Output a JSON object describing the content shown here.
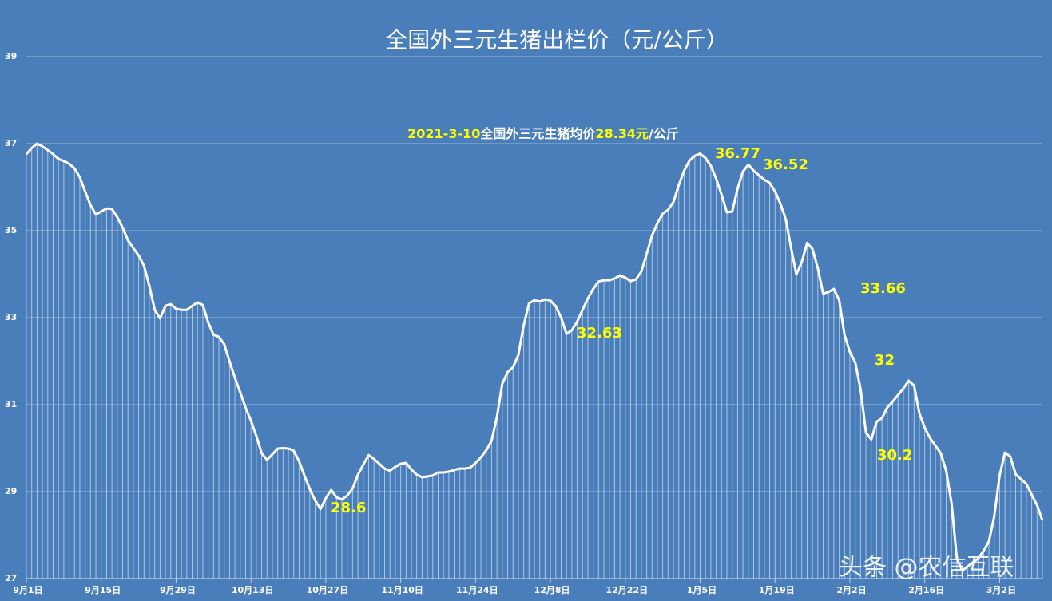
{
  "chart_data": {
    "type": "line",
    "title": "全国外三元生猪出栏价（元/公斤）",
    "subtitle": [
      "2021-3-10",
      "全国外三元生猪均价",
      "28.34元",
      "/公斤"
    ],
    "annotations": [
      "28.6",
      "32.63",
      "36.77",
      "36.52",
      "33.66",
      "32",
      "30.2"
    ],
    "watermark": "头条 @农信互联",
    "categories": [
      "9月1日",
      null,
      null,
      null,
      null,
      null,
      null,
      null,
      null,
      null,
      null,
      null,
      null,
      null,
      "9月15日",
      null,
      null,
      null,
      null,
      null,
      null,
      null,
      null,
      null,
      null,
      null,
      null,
      null,
      "9月29日",
      null,
      null,
      null,
      null,
      null,
      null,
      null,
      null,
      null,
      null,
      null,
      null,
      null,
      "10月13日",
      null,
      null,
      null,
      null,
      null,
      null,
      null,
      null,
      null,
      null,
      null,
      null,
      null,
      "10月27日",
      null,
      null,
      null,
      null,
      null,
      null,
      null,
      null,
      null,
      null,
      null,
      null,
      null,
      "11月10日",
      null,
      null,
      null,
      null,
      null,
      null,
      null,
      null,
      null,
      null,
      null,
      null,
      null,
      "11月24日",
      null,
      null,
      null,
      null,
      null,
      null,
      null,
      null,
      null,
      null,
      null,
      null,
      null,
      "12月8日",
      null,
      null,
      null,
      null,
      null,
      null,
      null,
      null,
      null,
      null,
      null,
      null,
      null,
      "12月22日",
      null,
      null,
      null,
      null,
      null,
      null,
      null,
      null,
      null,
      null,
      null,
      null,
      null,
      "1月5日",
      null,
      null,
      null,
      null,
      null,
      null,
      null,
      null,
      null,
      null,
      null,
      null,
      null,
      "1月19日",
      null,
      null,
      null,
      null,
      null,
      null,
      null,
      null,
      null,
      null,
      null,
      null,
      null,
      "2月2日",
      null,
      null,
      null,
      null,
      null,
      null,
      null,
      null,
      null,
      null,
      null,
      null,
      null,
      "2月16日",
      null,
      null,
      null,
      null,
      null,
      null,
      null,
      null,
      null,
      null,
      null,
      null,
      null,
      "3月2日",
      null,
      null,
      null,
      null,
      null,
      null,
      null,
      null
    ],
    "values": [
      36.76,
      36.9,
      37.0,
      36.94,
      36.85,
      36.76,
      36.65,
      36.6,
      36.54,
      36.43,
      36.23,
      35.9,
      35.59,
      35.37,
      35.44,
      35.51,
      35.5,
      35.31,
      35.07,
      34.78,
      34.6,
      34.43,
      34.19,
      33.73,
      33.18,
      32.98,
      33.27,
      33.31,
      33.2,
      33.18,
      33.18,
      33.27,
      33.35,
      33.29,
      32.89,
      32.61,
      32.56,
      32.39,
      31.99,
      31.62,
      31.28,
      30.93,
      30.63,
      30.28,
      29.88,
      29.73,
      29.86,
      29.99,
      30.0,
      29.99,
      29.94,
      29.7,
      29.37,
      29.06,
      28.8,
      28.6,
      28.85,
      29.04,
      28.87,
      28.82,
      28.91,
      29.07,
      29.39,
      29.62,
      29.84,
      29.75,
      29.64,
      29.53,
      29.48,
      29.57,
      29.64,
      29.66,
      29.51,
      29.39,
      29.33,
      29.35,
      29.37,
      29.44,
      29.44,
      29.46,
      29.5,
      29.53,
      29.53,
      29.55,
      29.66,
      29.79,
      29.95,
      30.17,
      30.72,
      31.48,
      31.75,
      31.86,
      32.14,
      32.82,
      33.33,
      33.4,
      33.37,
      33.42,
      33.39,
      33.26,
      33.0,
      32.63,
      32.71,
      32.91,
      33.18,
      33.44,
      33.66,
      33.83,
      33.86,
      33.86,
      33.9,
      33.97,
      33.92,
      33.84,
      33.88,
      34.06,
      34.47,
      34.89,
      35.17,
      35.39,
      35.48,
      35.66,
      36.05,
      36.38,
      36.61,
      36.72,
      36.77,
      36.67,
      36.49,
      36.19,
      35.83,
      35.42,
      35.44,
      35.97,
      36.36,
      36.52,
      36.38,
      36.27,
      36.17,
      36.1,
      35.9,
      35.62,
      35.26,
      34.61,
      33.99,
      34.28,
      34.72,
      34.58,
      34.14,
      33.55,
      33.59,
      33.66,
      33.4,
      32.6,
      32.21,
      31.97,
      31.35,
      30.36,
      30.2,
      30.61,
      30.69,
      30.94,
      31.07,
      31.22,
      31.37,
      31.55,
      31.44,
      30.8,
      30.47,
      30.23,
      30.06,
      29.88,
      29.48,
      28.74,
      27.46,
      27.18,
      27.28,
      27.37,
      27.46,
      27.64,
      27.86,
      28.43,
      29.37,
      29.9,
      29.81,
      29.4,
      29.29,
      29.18,
      28.93,
      28.69,
      28.34
    ],
    "color": "#ffffff",
    "ylim": [
      27,
      39
    ],
    "yticks": [
      27,
      29,
      31,
      33,
      35,
      37,
      39
    ],
    "grid": true
  }
}
